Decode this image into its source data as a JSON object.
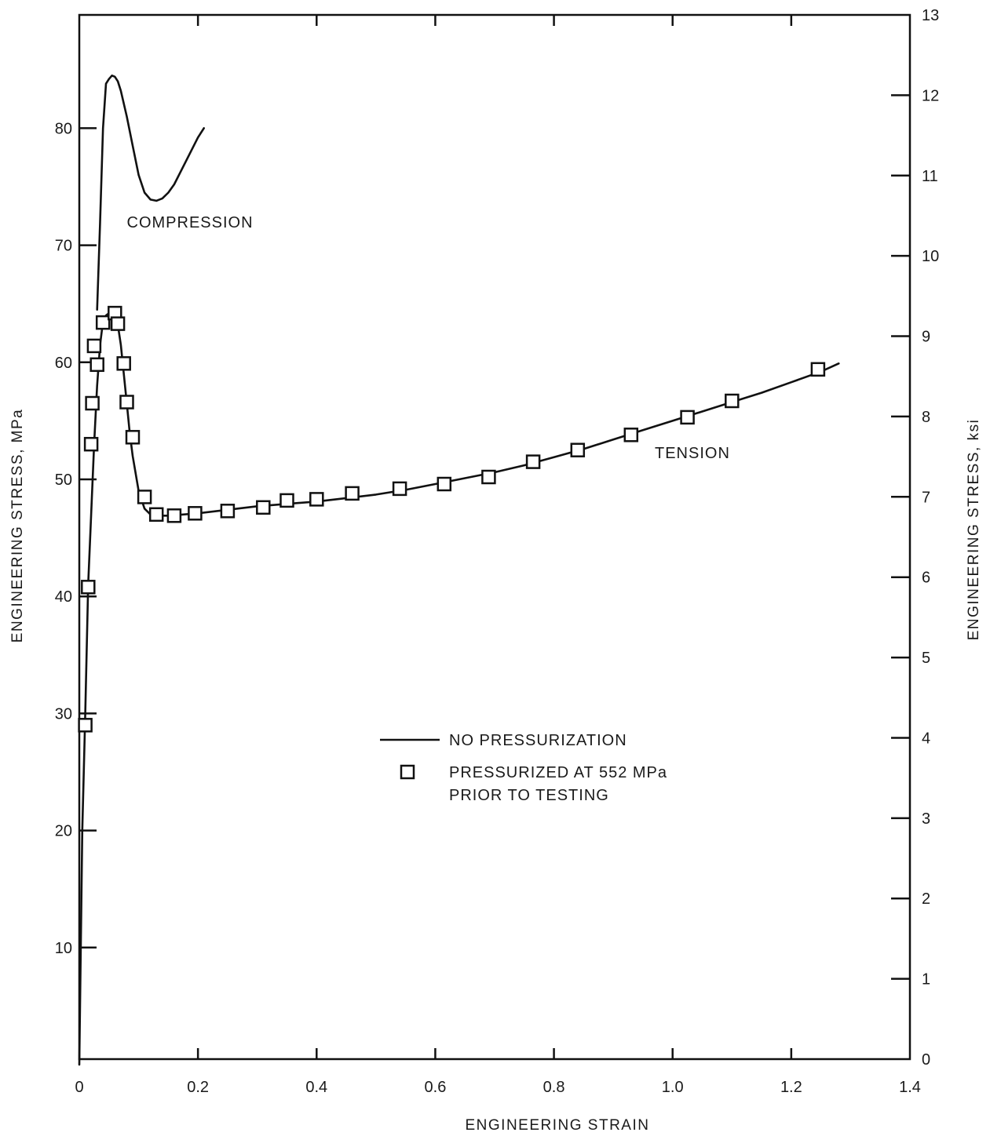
{
  "chart_data": {
    "type": "line",
    "xlabel": "ENGINEERING STRAIN",
    "ylabel_left": "ENGINEERING STRESS, MPa",
    "ylabel_right": "ENGINEERING STRESS, ksi",
    "xlim": [
      0,
      1.4
    ],
    "ylim_left": [
      0,
      90
    ],
    "ylim_right": [
      0,
      13
    ],
    "x_ticks": [
      0,
      0.2,
      0.4,
      0.6,
      0.8,
      1.0,
      1.2,
      1.4
    ],
    "x_tick_labels": [
      "0",
      "0.2",
      "0.4",
      "0.6",
      "0.8",
      "1.0",
      "1.2",
      "1.4"
    ],
    "y_left_ticks": [
      10,
      20,
      30,
      40,
      50,
      60,
      70,
      80
    ],
    "y_left_tick_labels": [
      "10",
      "20",
      "30",
      "40",
      "50",
      "60",
      "70",
      "80"
    ],
    "y_right_ticks": [
      0,
      1,
      2,
      3,
      4,
      5,
      6,
      7,
      8,
      9,
      10,
      11,
      12,
      13
    ],
    "y_right_tick_labels": [
      "0",
      "1",
      "2",
      "3",
      "4",
      "5",
      "6",
      "7",
      "8",
      "9",
      "10",
      "11",
      "12",
      "13"
    ],
    "grid": false,
    "annotations": [
      {
        "text": "COMPRESSION",
        "x": 0.08,
        "y": 71.5
      },
      {
        "text": "TENSION",
        "x": 0.97,
        "y": 51.8
      }
    ],
    "legend": {
      "placement": "center",
      "entries": [
        {
          "marker": "line",
          "lines": [
            "NO PRESSURIZATION"
          ]
        },
        {
          "marker": "square",
          "lines": [
            "PRESSURIZED AT 552 MPa",
            "PRIOR TO TESTING"
          ]
        }
      ]
    },
    "series": [
      {
        "name": "NO PRESSURIZATION",
        "group": "compression",
        "style": "line",
        "x": [
          0.03,
          0.035,
          0.04,
          0.045,
          0.05,
          0.055,
          0.06,
          0.065,
          0.07,
          0.08,
          0.09,
          0.1,
          0.11,
          0.12,
          0.13,
          0.14,
          0.15,
          0.16,
          0.18,
          0.2,
          0.21
        ],
        "y": [
          64.5,
          72,
          80,
          83.8,
          84.2,
          84.5,
          84.4,
          84,
          83.2,
          81,
          78.5,
          76,
          74.5,
          73.9,
          73.8,
          74,
          74.5,
          75.2,
          77.2,
          79.2,
          80
        ]
      },
      {
        "name": "NO PRESSURIZATION",
        "group": "tension",
        "style": "line",
        "x": [
          0,
          0.005,
          0.01,
          0.015,
          0.02,
          0.025,
          0.03,
          0.035,
          0.04,
          0.045,
          0.05,
          0.055,
          0.06,
          0.065,
          0.07,
          0.075,
          0.08,
          0.085,
          0.09,
          0.1,
          0.11,
          0.12,
          0.13,
          0.15,
          0.2,
          0.25,
          0.3,
          0.35,
          0.4,
          0.45,
          0.5,
          0.55,
          0.6,
          0.65,
          0.7,
          0.75,
          0.8,
          0.85,
          0.9,
          0.95,
          1.0,
          1.05,
          1.1,
          1.15,
          1.2,
          1.25,
          1.28
        ],
        "y": [
          0,
          20,
          30,
          41,
          47,
          53,
          58,
          61.5,
          63.5,
          64,
          64.2,
          64.2,
          64,
          63.2,
          61.5,
          59,
          56.5,
          54,
          52,
          49,
          47.5,
          47,
          46.9,
          46.9,
          47.1,
          47.4,
          47.7,
          47.9,
          48.1,
          48.4,
          48.7,
          49.1,
          49.6,
          50.1,
          50.6,
          51.2,
          51.9,
          52.6,
          53.4,
          54.2,
          55,
          55.8,
          56.6,
          57.4,
          58.3,
          59.2,
          59.9
        ]
      },
      {
        "name": "PRESSURIZED AT 552 MPa PRIOR TO TESTING",
        "style": "square-markers",
        "x": [
          0.01,
          0.015,
          0.02,
          0.022,
          0.025,
          0.03,
          0.04,
          0.06,
          0.065,
          0.075,
          0.08,
          0.09,
          0.11,
          0.13,
          0.16,
          0.195,
          0.25,
          0.31,
          0.35,
          0.4,
          0.46,
          0.54,
          0.615,
          0.69,
          0.765,
          0.84,
          0.93,
          1.025,
          1.1,
          1.245
        ],
        "y": [
          29,
          40.8,
          53,
          56.5,
          61.4,
          59.8,
          63.4,
          64.2,
          63.3,
          59.9,
          56.6,
          53.6,
          48.5,
          47,
          46.9,
          47.1,
          47.3,
          47.6,
          48.2,
          48.3,
          48.8,
          49.2,
          49.6,
          50.2,
          51.5,
          52.5,
          53.8,
          55.3,
          56.7,
          59.4
        ]
      }
    ]
  }
}
